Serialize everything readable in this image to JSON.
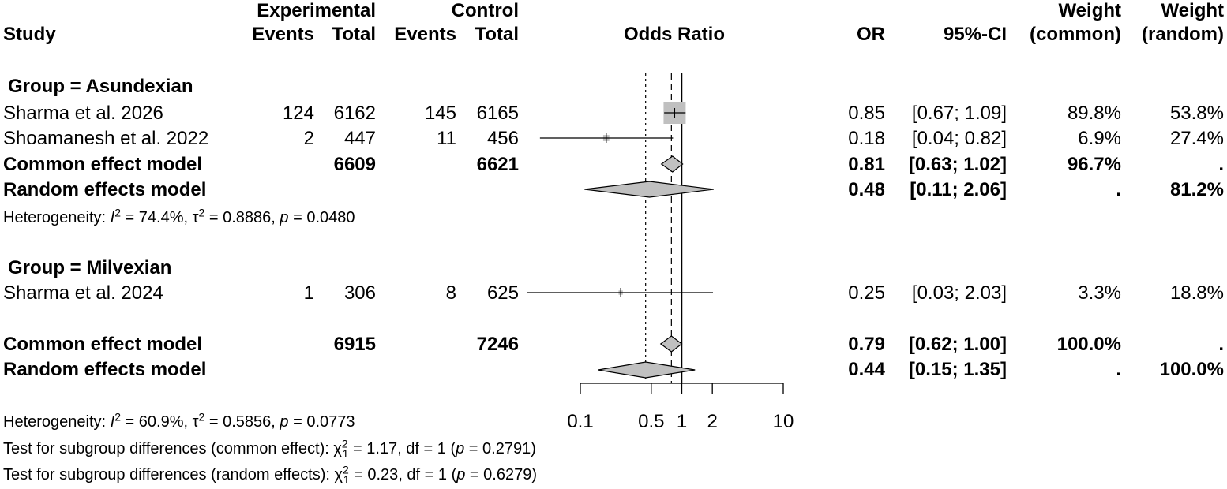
{
  "header": {
    "study": "Study",
    "experimental": "Experimental",
    "control": "Control",
    "events": "Events",
    "total": "Total",
    "odds_ratio": "Odds Ratio",
    "or": "OR",
    "ci": "95%-CI",
    "weight": "Weight",
    "common": "(common)",
    "random": "(random)"
  },
  "groups": [
    {
      "label": "Group  = Asundexian",
      "heterogeneity": {
        "i2": "74.4%",
        "tau2": "0.8886",
        "p": "0.0480"
      }
    },
    {
      "label": "Group  = Milvexian"
    }
  ],
  "rows": [
    {
      "study": "Sharma et al. 2026",
      "e_events": "124",
      "e_total": "6162",
      "c_events": "145",
      "c_total": "6165",
      "or": "0.85",
      "ci": "[0.67; 1.09]",
      "w_common": "89.8%",
      "w_random": "53.8%"
    },
    {
      "study": "Shoamanesh et al. 2022",
      "e_events": "2",
      "e_total": "447",
      "c_events": "11",
      "c_total": "456",
      "or": "0.18",
      "ci": "[0.04; 0.82]",
      "w_common": "6.9%",
      "w_random": "27.4%"
    },
    {
      "study": "Common effect model",
      "e_events": "",
      "e_total": "6609",
      "c_events": "",
      "c_total": "6621",
      "or": "0.81",
      "ci": "[0.63; 1.02]",
      "w_common": "96.7%",
      "w_random": "."
    },
    {
      "study": "Random effects model",
      "e_events": "",
      "e_total": "",
      "c_events": "",
      "c_total": "",
      "or": "0.48",
      "ci": "[0.11; 2.06]",
      "w_common": ".",
      "w_random": "81.2%"
    },
    {
      "study": "Sharma et al. 2024",
      "e_events": "1",
      "e_total": "306",
      "c_events": "8",
      "c_total": "625",
      "or": "0.25",
      "ci": "[0.03; 2.03]",
      "w_common": "3.3%",
      "w_random": "18.8%"
    },
    {
      "study": "Common effect model",
      "e_events": "",
      "e_total": "6915",
      "c_events": "",
      "c_total": "7246",
      "or": "0.79",
      "ci": "[0.62; 1.00]",
      "w_common": "100.0%",
      "w_random": "."
    },
    {
      "study": "Random effects model",
      "e_events": "",
      "e_total": "",
      "c_events": "",
      "c_total": "",
      "or": "0.44",
      "ci": "[0.15; 1.35]",
      "w_common": ".",
      "w_random": "100.0%"
    }
  ],
  "overall_heterogeneity": {
    "i2": "60.9%",
    "tau2": "0.5856",
    "p": "0.0773"
  },
  "subgroup_tests": [
    {
      "label": "Test for subgroup differences (common effect): ",
      "chi2": "1.17",
      "df": "1",
      "p": "0.2791"
    },
    {
      "label": "Test for subgroup differences (random effects): ",
      "chi2": "0.23",
      "df": "1",
      "p": "0.6279"
    }
  ],
  "chart_data": {
    "type": "forest",
    "title": "",
    "xlabel": "Odds Ratio",
    "x_scale": "log",
    "xlim": [
      0.1,
      10
    ],
    "ticks": [
      0.1,
      0.5,
      1,
      2,
      10
    ],
    "tick_labels": [
      "0.1",
      "0.5",
      "1",
      "2",
      "10"
    ],
    "null_line": 1,
    "common_effect_line": 0.79,
    "random_effect_line": 0.44,
    "studies": [
      {
        "name": "Sharma et al. 2026",
        "or": 0.85,
        "lo": 0.67,
        "hi": 1.09,
        "weight": 89.8,
        "kind": "study"
      },
      {
        "name": "Shoamanesh et al. 2022",
        "or": 0.18,
        "lo": 0.04,
        "hi": 0.82,
        "weight": 6.9,
        "kind": "study"
      },
      {
        "name": "Common effect model",
        "or": 0.81,
        "lo": 0.63,
        "hi": 1.02,
        "kind": "common"
      },
      {
        "name": "Random effects model",
        "or": 0.48,
        "lo": 0.11,
        "hi": 2.06,
        "kind": "random"
      },
      {
        "name": "Sharma et al. 2024",
        "or": 0.25,
        "lo": 0.03,
        "hi": 2.03,
        "weight": 3.3,
        "kind": "study"
      },
      {
        "name": "Common effect model",
        "or": 0.79,
        "lo": 0.62,
        "hi": 1.0,
        "kind": "common"
      },
      {
        "name": "Random effects model",
        "or": 0.44,
        "lo": 0.15,
        "hi": 1.35,
        "kind": "random"
      }
    ],
    "colors": {
      "square": "#c0c0c0",
      "diamond": "#c0c0c0",
      "line": "#000000"
    }
  }
}
